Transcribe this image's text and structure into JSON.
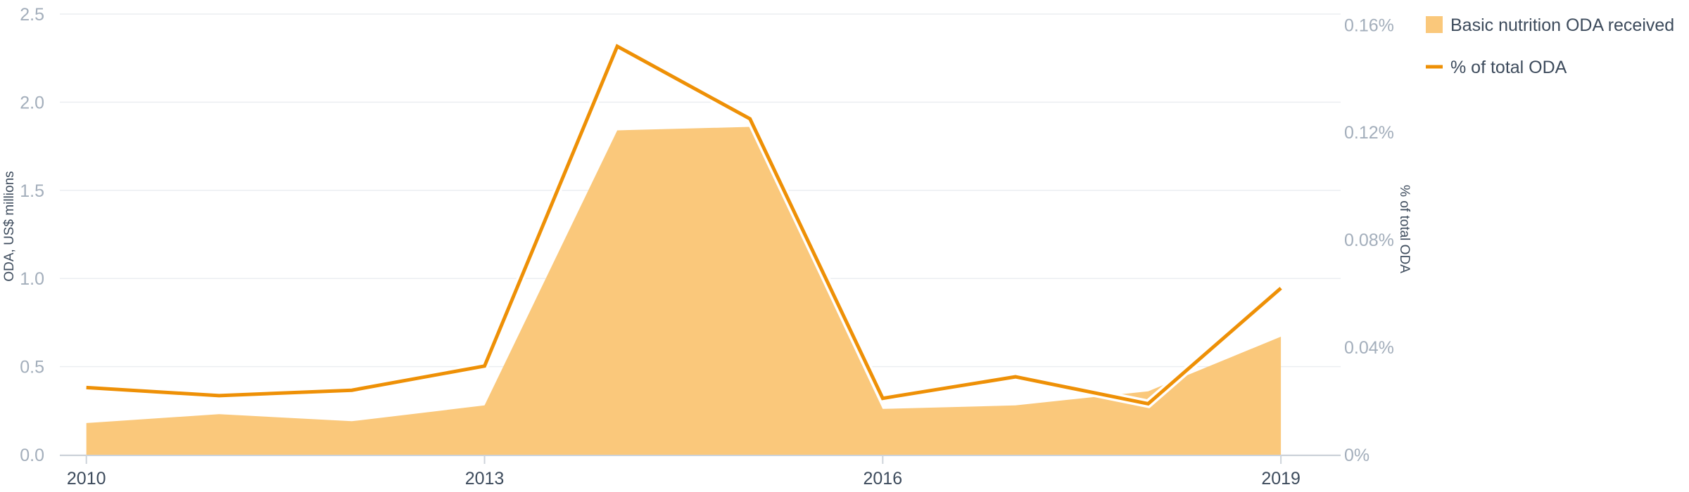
{
  "chart_data": {
    "type": "area",
    "x": [
      2010,
      2011,
      2012,
      2013,
      2014,
      2015,
      2016,
      2017,
      2018,
      2019
    ],
    "x_ticks": [
      "2010",
      "2013",
      "2016",
      "2019"
    ],
    "xlim": [
      2009.8,
      2019.45
    ],
    "series": [
      {
        "name": "Basic nutrition ODA received",
        "type": "area",
        "axis": "left",
        "color": "#fac87b",
        "values": [
          0.18,
          0.23,
          0.19,
          0.28,
          1.84,
          1.86,
          0.26,
          0.28,
          0.36,
          0.67
        ]
      },
      {
        "name": "% of total ODA",
        "type": "line",
        "axis": "right",
        "color": "#ee9006",
        "values": [
          0.025,
          0.022,
          0.024,
          0.033,
          0.152,
          0.125,
          0.021,
          0.029,
          0.019,
          0.062
        ]
      }
    ],
    "y_left": {
      "label": "ODA, US$ millions",
      "lim": [
        0,
        2.5
      ],
      "ticks": [
        "0.0",
        "0.5",
        "1.0",
        "1.5",
        "2.0",
        "2.5"
      ]
    },
    "y_right": {
      "label": "% of total ODA",
      "lim": [
        0,
        0.164
      ],
      "tick_values": [
        0,
        0.04,
        0.08,
        0.12,
        0.16
      ],
      "ticks": [
        "0%",
        "0.04%",
        "0.08%",
        "0.12%",
        "0.16%"
      ]
    },
    "grid": true,
    "legend": {
      "position": "top-right",
      "items": [
        "Basic nutrition ODA received",
        "% of total ODA"
      ]
    }
  }
}
